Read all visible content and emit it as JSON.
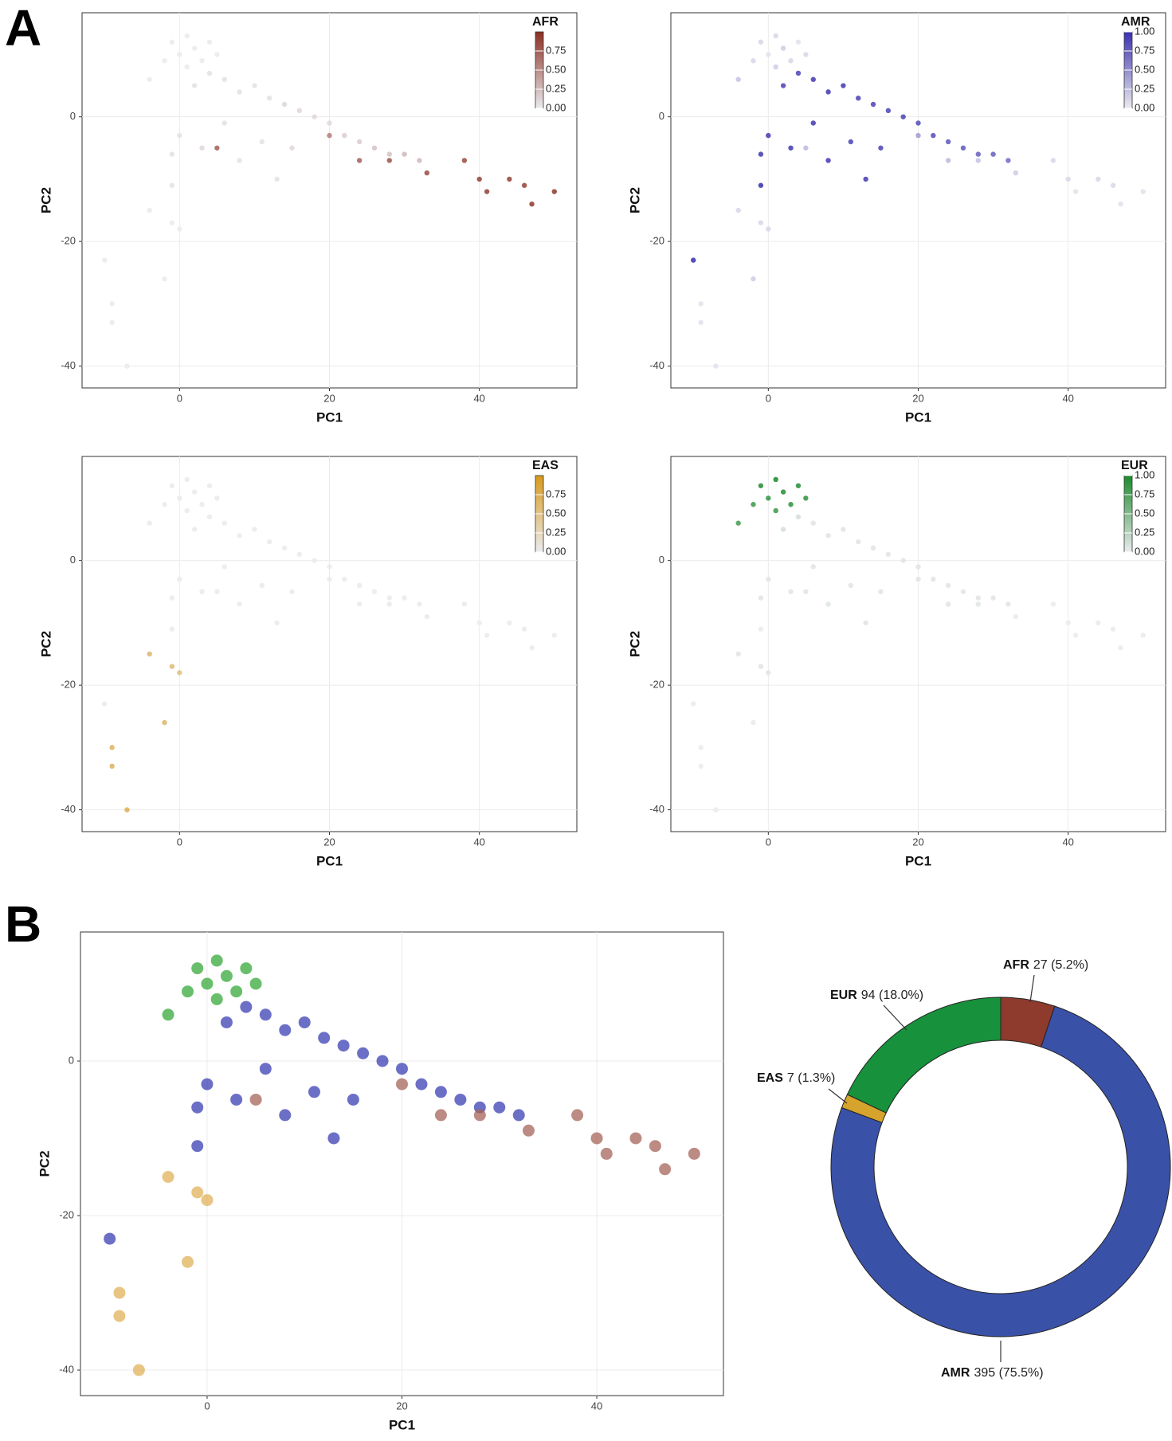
{
  "labels": [
    "A",
    "B"
  ],
  "chart_data": [
    {
      "type": "scatter-facet",
      "xlabel": "PC1",
      "ylabel": "PC2",
      "xlim": [
        -13,
        53
      ],
      "ylim": [
        -43.5,
        16.7
      ],
      "xticks": [
        0,
        20,
        40
      ],
      "yticks": [
        -40,
        -20,
        0
      ],
      "grid": true,
      "x": [
        -1,
        0,
        1,
        2,
        3,
        4,
        -2,
        -4,
        1,
        5,
        2,
        4,
        6,
        8,
        10,
        12,
        14,
        16,
        18,
        20,
        22,
        24,
        26,
        28,
        30,
        32,
        0,
        -1,
        -1,
        3,
        8,
        13,
        -10,
        11,
        6,
        15,
        5,
        20,
        24,
        28,
        33,
        38,
        40,
        41,
        44,
        47,
        50,
        46,
        -4,
        -1,
        0,
        -2,
        -9,
        -9,
        -7
      ],
      "y": [
        12,
        10,
        13,
        11,
        9,
        12,
        9,
        6,
        8,
        10,
        5,
        7,
        6,
        4,
        5,
        3,
        2,
        1,
        0,
        -1,
        -3,
        -4,
        -5,
        -6,
        -6,
        -7,
        -3,
        -6,
        -11,
        -5,
        -7,
        -10,
        -23,
        -4,
        -1,
        -5,
        -5,
        -3,
        -7,
        -7,
        -9,
        -7,
        -10,
        -12,
        -10,
        -14,
        -12,
        -11,
        -15,
        -17,
        -18,
        -26,
        -30,
        -33,
        -40
      ],
      "facets": [
        {
          "name": "AFR",
          "color": "#8b2f22",
          "legend_ticks": [
            {
              "value": 0,
              "label": "0.00"
            },
            {
              "value": 0.25,
              "label": "0.25"
            },
            {
              "value": 0.5,
              "label": "0.50"
            },
            {
              "value": 0.75,
              "label": "0.75"
            }
          ],
          "values": [
            0,
            0,
            0,
            0,
            0,
            0,
            0,
            0,
            0,
            0,
            0.05,
            0.05,
            0.05,
            0.05,
            0.05,
            0.05,
            0.1,
            0.1,
            0.1,
            0.1,
            0.15,
            0.15,
            0.2,
            0.2,
            0.25,
            0.25,
            0.05,
            0.05,
            0.05,
            0.1,
            0.05,
            0.05,
            0,
            0.05,
            0.05,
            0.1,
            0.7,
            0.55,
            0.7,
            0.75,
            0.8,
            0.8,
            0.85,
            0.85,
            0.85,
            0.9,
            0.9,
            0.85,
            0,
            0,
            0,
            0,
            0,
            0,
            0
          ]
        },
        {
          "name": "AMR",
          "color": "#3a30b0",
          "legend_ticks": [
            {
              "value": 0,
              "label": "0.00"
            },
            {
              "value": 0.25,
              "label": "0.25"
            },
            {
              "value": 0.5,
              "label": "0.50"
            },
            {
              "value": 0.75,
              "label": "0.75"
            },
            {
              "value": 1,
              "label": "1.00"
            }
          ],
          "values": [
            0.1,
            0.05,
            0.1,
            0.15,
            0.1,
            0.05,
            0.1,
            0.2,
            0.15,
            0.1,
            0.85,
            0.85,
            0.9,
            0.9,
            0.9,
            0.85,
            0.85,
            0.85,
            0.85,
            0.8,
            0.8,
            0.75,
            0.75,
            0.7,
            0.7,
            0.65,
            0.9,
            0.9,
            0.95,
            0.9,
            0.9,
            0.9,
            0.95,
            0.85,
            0.9,
            0.85,
            0.25,
            0.4,
            0.25,
            0.2,
            0.15,
            0.1,
            0.1,
            0.05,
            0.1,
            0.05,
            0.05,
            0.1,
            0.1,
            0.1,
            0.1,
            0.15,
            0.05,
            0.05,
            0.05
          ]
        },
        {
          "name": "EAS",
          "color": "#d99a1c",
          "legend_ticks": [
            {
              "value": 0,
              "label": "0.00"
            },
            {
              "value": 0.25,
              "label": "0.25"
            },
            {
              "value": 0.5,
              "label": "0.50"
            },
            {
              "value": 0.75,
              "label": "0.75"
            }
          ],
          "values": [
            0,
            0,
            0,
            0,
            0,
            0,
            0,
            0,
            0,
            0,
            0,
            0,
            0,
            0,
            0,
            0,
            0,
            0,
            0,
            0,
            0,
            0,
            0,
            0,
            0,
            0,
            0,
            0,
            0,
            0,
            0,
            0,
            0,
            0,
            0,
            0,
            0,
            0,
            0,
            0,
            0,
            0,
            0,
            0,
            0,
            0,
            0,
            0,
            0.6,
            0.55,
            0.5,
            0.6,
            0.65,
            0.65,
            0.7
          ]
        },
        {
          "name": "EUR",
          "color": "#1a8a2a",
          "legend_ticks": [
            {
              "value": 0,
              "label": "0.00"
            },
            {
              "value": 0.25,
              "label": "0.25"
            },
            {
              "value": 0.5,
              "label": "0.50"
            },
            {
              "value": 0.75,
              "label": "0.75"
            },
            {
              "value": 1,
              "label": "1.00"
            }
          ],
          "values": [
            0.9,
            0.85,
            0.95,
            0.9,
            0.85,
            0.9,
            0.8,
            0.75,
            0.8,
            0.85,
            0.1,
            0.1,
            0.05,
            0.05,
            0.05,
            0.05,
            0.05,
            0.05,
            0.05,
            0.05,
            0.05,
            0.05,
            0.05,
            0.05,
            0.05,
            0.05,
            0.05,
            0.05,
            0,
            0.05,
            0.05,
            0.05,
            0,
            0.05,
            0.05,
            0.05,
            0.05,
            0.05,
            0.05,
            0.05,
            0,
            0,
            0,
            0,
            0,
            0,
            0,
            0,
            0.05,
            0.05,
            0.05,
            0,
            0,
            0,
            0
          ]
        }
      ]
    },
    {
      "type": "scatter",
      "xlabel": "PC1",
      "ylabel": "PC2",
      "xlim": [
        -13,
        53
      ],
      "ylim": [
        -43.3,
        16.7
      ],
      "xticks": [
        0,
        20,
        40
      ],
      "yticks": [
        -40,
        -20,
        0
      ],
      "grid": true,
      "series": [
        {
          "color": "#3b3fb3",
          "x": [
            2,
            4,
            6,
            8,
            10,
            12,
            14,
            16,
            18,
            20,
            22,
            24,
            26,
            28,
            30,
            32,
            0,
            -1,
            -1,
            3,
            8,
            13,
            -10,
            11,
            6,
            15
          ],
          "y": [
            5,
            7,
            6,
            4,
            5,
            3,
            2,
            1,
            0,
            -1,
            -3,
            -4,
            -5,
            -6,
            -6,
            -7,
            -3,
            -6,
            -11,
            -5,
            -7,
            -10,
            -23,
            -4,
            -1,
            -5
          ]
        },
        {
          "color": "#a5645a",
          "x": [
            5,
            20,
            24,
            28,
            33,
            38,
            40,
            41,
            44,
            47,
            50,
            46
          ],
          "y": [
            -5,
            -3,
            -7,
            -7,
            -9,
            -7,
            -10,
            -12,
            -10,
            -14,
            -12,
            -11
          ]
        },
        {
          "color": "#e0b15a",
          "x": [
            -4,
            -1,
            0,
            -2,
            -9,
            -9,
            -7
          ],
          "y": [
            -15,
            -17,
            -18,
            -26,
            -30,
            -33,
            -40
          ]
        },
        {
          "color": "#35a83a",
          "x": [
            -1,
            0,
            1,
            2,
            3,
            4,
            -2,
            -4,
            1,
            5
          ],
          "y": [
            12,
            10,
            13,
            11,
            9,
            12,
            9,
            6,
            8,
            10
          ]
        }
      ]
    },
    {
      "type": "donut",
      "categories": [
        "AFR",
        "AMR",
        "EAS",
        "EUR"
      ],
      "values": [
        27,
        395,
        7,
        94
      ],
      "value_labels": [
        "27 (5.2%)",
        "395 (75.5%)",
        "7 (1.3%)",
        "94 (18.0%)"
      ],
      "colors": [
        "#8e3a2c",
        "#3a51a8",
        "#d6a42c",
        "#17913c"
      ]
    }
  ]
}
